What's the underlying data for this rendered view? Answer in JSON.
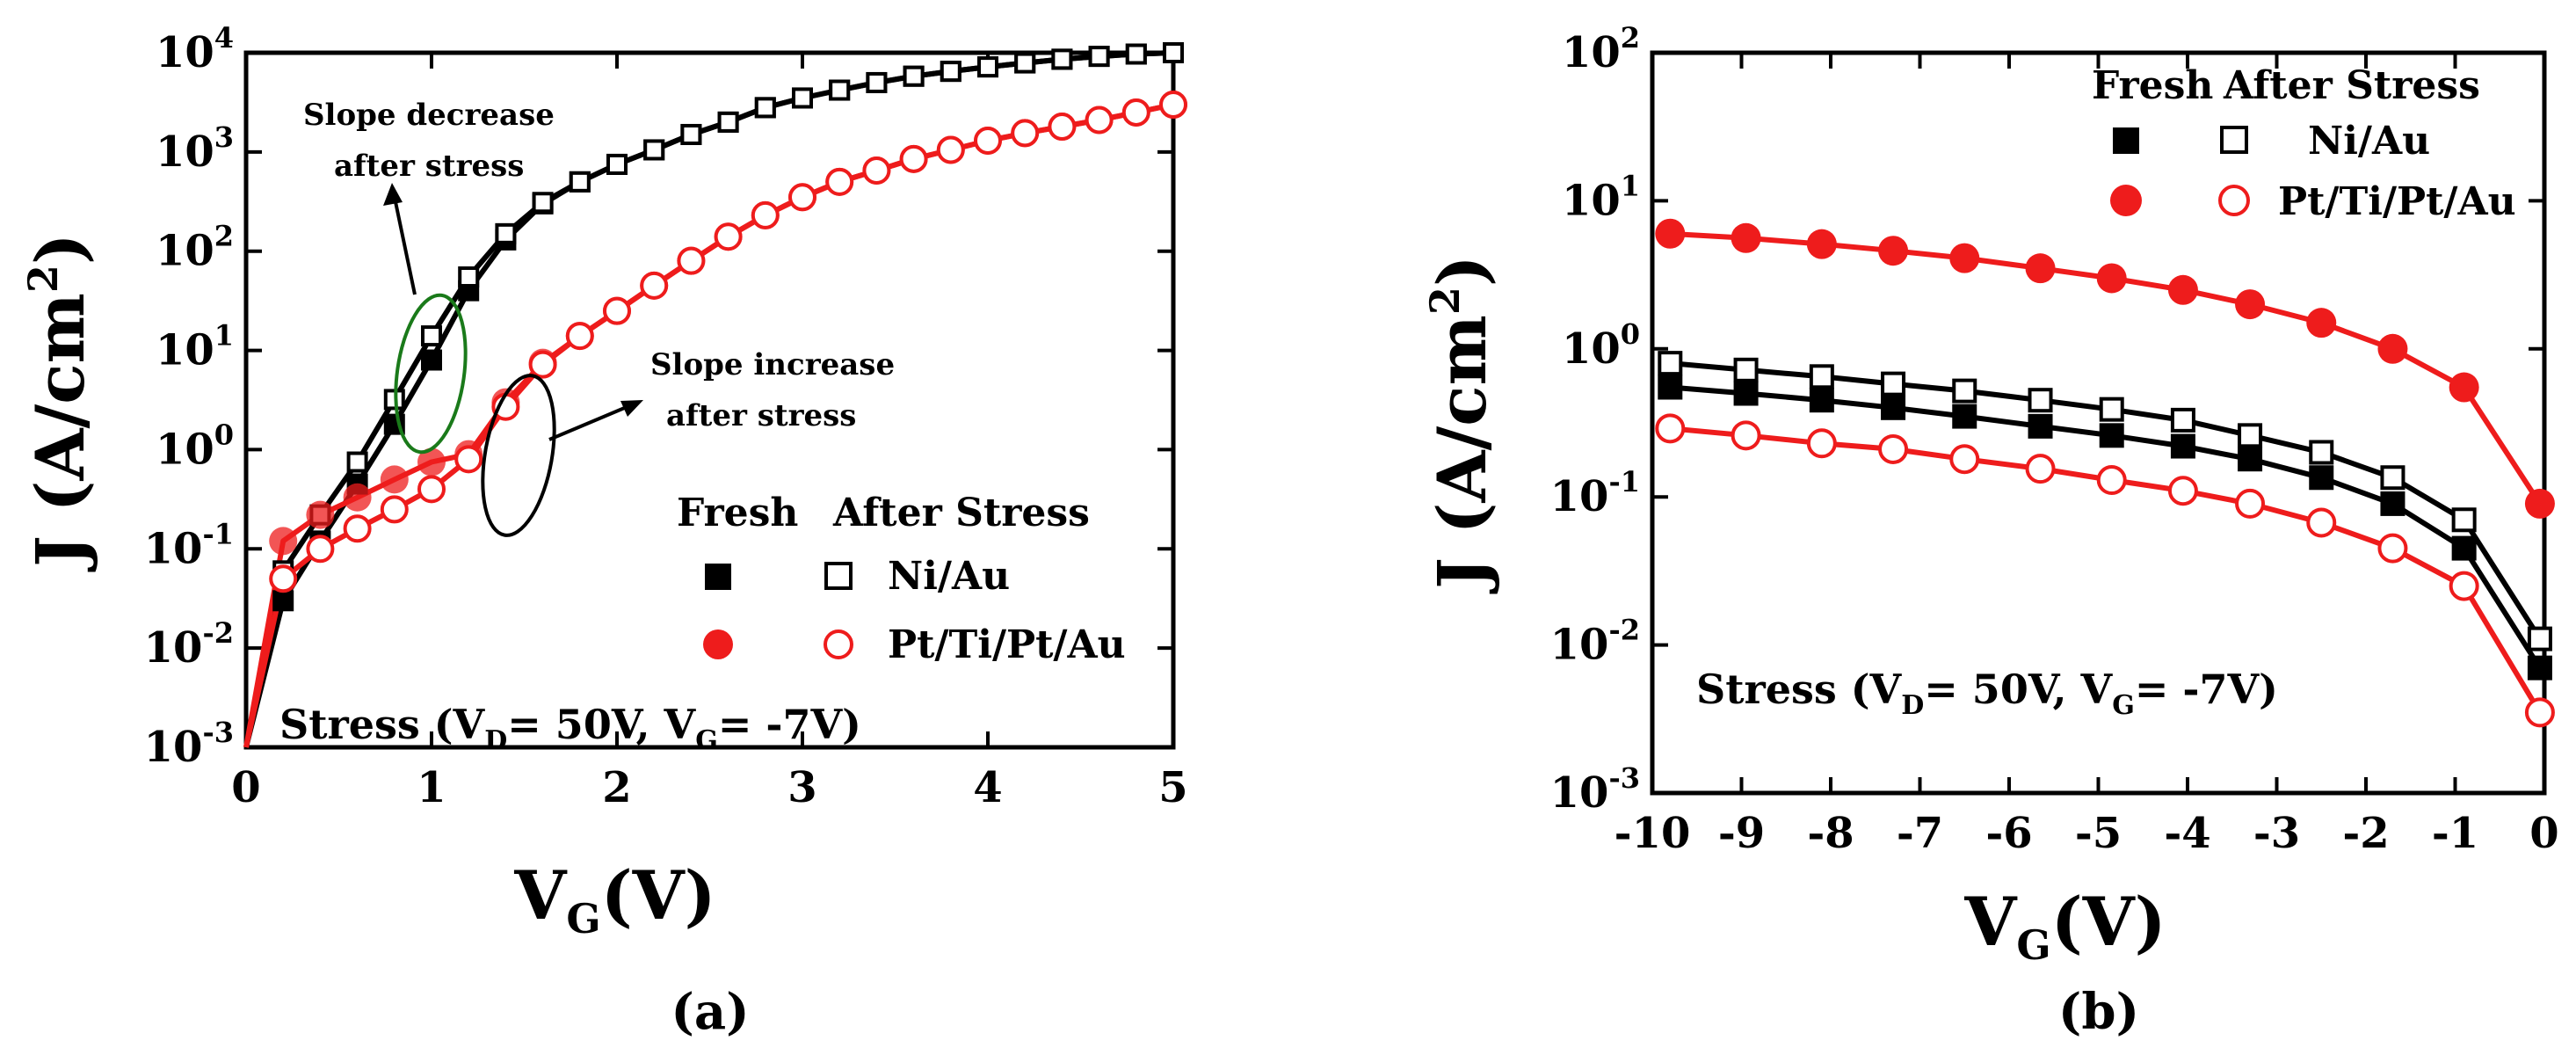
{
  "chart_data": [
    {
      "id": "a",
      "type": "line",
      "panel_label": "(a)",
      "xlabel": "VG(V)",
      "ylabel": "J (A/cm2)",
      "xlim": [
        0,
        5
      ],
      "ylim": [
        0.001,
        10000
      ],
      "yscale": "log",
      "x_ticks": [
        "0",
        "1",
        "2",
        "3",
        "4",
        "5"
      ],
      "y_ticks": [
        "10-3",
        "10-2",
        "10-1",
        "100",
        "101",
        "102",
        "103",
        "104"
      ],
      "stress_label": "Stress (VD= 50V, VG= -7V)",
      "annotations": [
        {
          "text": [
            "Slope decrease",
            "after stress"
          ],
          "ellipse_color": "#1a7a1a"
        },
        {
          "text": [
            "Slope increase",
            "after stress"
          ],
          "ellipse_color": "#000000"
        }
      ],
      "legend": {
        "header_fresh": "Fresh",
        "header_after": "After Stress",
        "placement": "middle-right"
      },
      "series": [
        {
          "name": "Ni/Au",
          "condition": "Fresh",
          "color": "#000000",
          "marker": "filled-square",
          "x": [
            0,
            0.2,
            0.4,
            0.6,
            0.8,
            1.0,
            1.2,
            1.4,
            1.6,
            1.8,
            2.0,
            2.2,
            2.4,
            2.6,
            2.8,
            3.0,
            3.2,
            3.4,
            3.6,
            3.8,
            4.0,
            4.2,
            4.4,
            4.6,
            4.8,
            5.0
          ],
          "y": [
            0.001,
            0.03,
            0.12,
            0.45,
            1.8,
            8,
            40,
            130,
            300,
            500,
            750,
            1050,
            1500,
            2000,
            2800,
            3500,
            4200,
            5000,
            5800,
            6500,
            7200,
            7900,
            8600,
            9200,
            9700,
            10000
          ]
        },
        {
          "name": "Ni/Au",
          "condition": "After Stress",
          "color": "#000000",
          "marker": "open-square",
          "x": [
            0,
            0.2,
            0.4,
            0.6,
            0.8,
            1.0,
            1.2,
            1.4,
            1.6,
            1.8,
            2.0,
            2.2,
            2.4,
            2.6,
            2.8,
            3.0,
            3.2,
            3.4,
            3.6,
            3.8,
            4.0,
            4.2,
            4.4,
            4.6,
            4.8,
            5.0
          ],
          "y": [
            0.001,
            0.06,
            0.22,
            0.75,
            3.2,
            14,
            55,
            150,
            310,
            500,
            750,
            1050,
            1500,
            2000,
            2800,
            3500,
            4200,
            5000,
            5800,
            6500,
            7200,
            7900,
            8600,
            9200,
            9700,
            10000
          ]
        },
        {
          "name": "Pt/Ti/Pt/Au",
          "condition": "Fresh",
          "color": "#ee1c1c",
          "marker": "filled-circle",
          "x": [
            0,
            0.2,
            0.4,
            0.6,
            0.8,
            1.0,
            1.2,
            1.4,
            1.6,
            1.8,
            2.0,
            2.2,
            2.4,
            2.6,
            2.8,
            3.0,
            3.2,
            3.4,
            3.6,
            3.8,
            4.0,
            4.2,
            4.4,
            4.6,
            4.8,
            5.0
          ],
          "y": [
            0.001,
            0.12,
            0.22,
            0.33,
            0.5,
            0.75,
            0.9,
            3,
            7.5,
            14,
            25,
            45,
            80,
            140,
            230,
            350,
            500,
            650,
            850,
            1050,
            1300,
            1550,
            1800,
            2100,
            2500,
            3000
          ]
        },
        {
          "name": "Pt/Ti/Pt/Au",
          "condition": "After Stress",
          "color": "#ee1c1c",
          "marker": "open-circle",
          "x": [
            0,
            0.2,
            0.4,
            0.6,
            0.8,
            1.0,
            1.2,
            1.4,
            1.6,
            1.8,
            2.0,
            2.2,
            2.4,
            2.6,
            2.8,
            3.0,
            3.2,
            3.4,
            3.6,
            3.8,
            4.0,
            4.2,
            4.4,
            4.6,
            4.8,
            5.0
          ],
          "y": [
            0.001,
            0.05,
            0.1,
            0.16,
            0.25,
            0.4,
            0.8,
            2.7,
            7.2,
            14,
            25,
            45,
            80,
            140,
            230,
            350,
            500,
            650,
            850,
            1050,
            1300,
            1550,
            1800,
            2100,
            2500,
            3000
          ]
        }
      ]
    },
    {
      "id": "b",
      "type": "line",
      "panel_label": "(b)",
      "xlabel": "VG(V)",
      "ylabel": "J (A/cm2)",
      "xlim": [
        -10,
        0
      ],
      "ylim": [
        0.001,
        100
      ],
      "yscale": "log",
      "x_ticks": [
        "-10",
        "-9",
        "-8",
        "-7",
        "-6",
        "-5",
        "-4",
        "-3",
        "-2",
        "-1",
        "0"
      ],
      "y_ticks": [
        "10-3",
        "10-2",
        "10-1",
        "100",
        "101",
        "102"
      ],
      "stress_label": "Stress (VD= 50V, VG= -7V)",
      "legend": {
        "header_fresh": "Fresh",
        "header_after": "After Stress",
        "placement": "top-right"
      },
      "series": [
        {
          "name": "Ni/Au",
          "condition": "Fresh",
          "color": "#000000",
          "marker": "filled-square",
          "x": [
            -9.8,
            -8.95,
            -8.1,
            -7.3,
            -6.5,
            -5.65,
            -4.85,
            -4.05,
            -3.3,
            -2.5,
            -1.7,
            -0.9,
            -0.05
          ],
          "y": [
            0.55,
            0.5,
            0.45,
            0.4,
            0.35,
            0.3,
            0.26,
            0.22,
            0.18,
            0.135,
            0.09,
            0.045,
            0.007
          ]
        },
        {
          "name": "Ni/Au",
          "condition": "After Stress",
          "color": "#000000",
          "marker": "open-square",
          "x": [
            -9.8,
            -8.95,
            -8.1,
            -7.3,
            -6.5,
            -5.65,
            -4.85,
            -4.05,
            -3.3,
            -2.5,
            -1.7,
            -0.9,
            -0.05
          ],
          "y": [
            0.8,
            0.72,
            0.65,
            0.58,
            0.52,
            0.45,
            0.39,
            0.33,
            0.26,
            0.2,
            0.135,
            0.07,
            0.011
          ]
        },
        {
          "name": "Pt/Ti/Pt/Au",
          "condition": "Fresh",
          "color": "#ee1c1c",
          "marker": "filled-circle",
          "x": [
            -9.8,
            -8.95,
            -8.1,
            -7.3,
            -6.5,
            -5.65,
            -4.85,
            -4.05,
            -3.3,
            -2.5,
            -1.7,
            -0.9,
            -0.05
          ],
          "y": [
            6,
            5.6,
            5.1,
            4.6,
            4.1,
            3.5,
            3.0,
            2.5,
            2.0,
            1.5,
            1.0,
            0.55,
            0.09
          ]
        },
        {
          "name": "Pt/Ti/Pt/Au",
          "condition": "After Stress",
          "color": "#ee1c1c",
          "marker": "open-circle",
          "x": [
            -9.8,
            -8.95,
            -8.1,
            -7.3,
            -6.5,
            -5.65,
            -4.85,
            -4.05,
            -3.3,
            -2.5,
            -1.7,
            -0.9,
            -0.05
          ],
          "y": [
            0.29,
            0.26,
            0.23,
            0.21,
            0.18,
            0.155,
            0.13,
            0.11,
            0.09,
            0.067,
            0.045,
            0.025,
            0.0035
          ]
        }
      ]
    }
  ]
}
